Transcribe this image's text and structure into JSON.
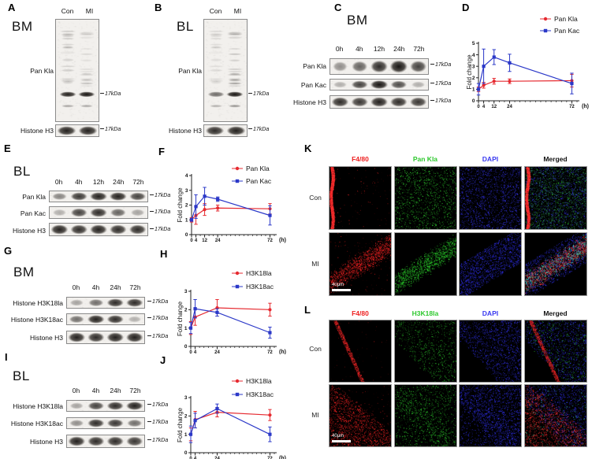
{
  "panels": {
    "A": {
      "letter": "A",
      "tissue": "BM"
    },
    "B": {
      "letter": "B",
      "tissue": "BL"
    },
    "C": {
      "letter": "C",
      "tissue": "BM"
    },
    "D": {
      "letter": "D"
    },
    "E": {
      "letter": "E",
      "tissue": "BL"
    },
    "F": {
      "letter": "F"
    },
    "G": {
      "letter": "G",
      "tissue": "BM"
    },
    "H": {
      "letter": "H"
    },
    "I": {
      "letter": "I",
      "tissue": "BL"
    },
    "J": {
      "letter": "J"
    },
    "K": {
      "letter": "K"
    },
    "L": {
      "letter": "L"
    }
  },
  "tall_blots": {
    "A": {
      "lane_labels": [
        "Con",
        "MI"
      ],
      "target": "Pan Kla",
      "marker": "17kDa",
      "loading": "Histone H3",
      "loading_marker": "17kDa",
      "band_intensities": [
        0.95,
        1.0
      ],
      "smear": [
        0.45,
        0.4
      ],
      "loading_intensities": [
        0.95,
        0.95
      ]
    },
    "B": {
      "lane_labels": [
        "Con",
        "MI"
      ],
      "target": "Pan Kla",
      "marker": "17kDa",
      "loading": "Histone H3",
      "loading_marker": "17kDa",
      "band_intensities": [
        0.6,
        1.0
      ],
      "smear": [
        0.3,
        0.7
      ],
      "loading_intensities": [
        0.9,
        0.95
      ]
    }
  },
  "strip_blots": {
    "C": {
      "timepoints": [
        "0h",
        "4h",
        "12h",
        "24h",
        "72h"
      ],
      "rows": [
        {
          "label": "Pan Kla",
          "marker": "17kDa",
          "intensities": [
            0.45,
            0.65,
            0.9,
            1.0,
            0.8
          ]
        },
        {
          "label": "Pan Kac",
          "marker": "17kDa",
          "intensities": [
            0.3,
            0.8,
            1.0,
            0.75,
            0.3
          ]
        },
        {
          "label": "Histone H3",
          "marker": "17kDa",
          "intensities": [
            0.9,
            0.85,
            0.95,
            0.9,
            0.85
          ]
        }
      ]
    },
    "E": {
      "timepoints": [
        "0h",
        "4h",
        "12h",
        "24h",
        "72h"
      ],
      "rows": [
        {
          "label": "Pan Kla",
          "marker": "17kDa",
          "intensities": [
            0.5,
            0.85,
            0.95,
            0.95,
            0.8
          ]
        },
        {
          "label": "Pan Kac",
          "marker": "17kDa",
          "intensities": [
            0.3,
            0.8,
            0.9,
            0.65,
            0.35
          ]
        },
        {
          "label": "Histone H3",
          "marker": "17kDa",
          "intensities": [
            0.95,
            0.9,
            0.95,
            0.9,
            0.9
          ]
        }
      ]
    },
    "G": {
      "timepoints": [
        "0h",
        "4h",
        "24h",
        "72h"
      ],
      "rows": [
        {
          "label": "Histone H3K18la",
          "marker": "17kDa",
          "intensities": [
            0.35,
            0.6,
            0.9,
            0.9
          ]
        },
        {
          "label": "Histone H3K18ac",
          "marker": "17kDa",
          "intensities": [
            0.6,
            0.95,
            0.9,
            0.3
          ]
        },
        {
          "label": "Histone H3",
          "marker": "17kDa",
          "intensities": [
            0.95,
            0.9,
            0.95,
            0.95
          ]
        }
      ]
    },
    "I": {
      "timepoints": [
        "0h",
        "4h",
        "24h",
        "72h"
      ],
      "rows": [
        {
          "label": "Histone H3K18la",
          "marker": "17kDa",
          "intensities": [
            0.35,
            0.8,
            0.9,
            0.95
          ]
        },
        {
          "label": "Histone H3K18ac",
          "marker": "17kDa",
          "intensities": [
            0.45,
            0.9,
            0.85,
            0.6
          ]
        },
        {
          "label": "Histone H3",
          "marker": "17kDa",
          "intensities": [
            0.95,
            0.9,
            0.9,
            0.85
          ]
        }
      ]
    }
  },
  "chart_data": [
    {
      "panel": "D",
      "type": "line",
      "x": [
        0,
        4,
        12,
        24,
        72
      ],
      "xlabel": "(h)",
      "ylabel": "Fold change",
      "ylim": [
        0,
        5
      ],
      "yticks": [
        0,
        1,
        2,
        3,
        4,
        5
      ],
      "minor_tick_step": 4,
      "legend_position": "top-right",
      "series": [
        {
          "name": "Pan Kla",
          "color": "#e62a30",
          "marker": "circle",
          "values": [
            1.0,
            1.35,
            1.7,
            1.7,
            1.75
          ],
          "errors": [
            0.2,
            0.25,
            0.25,
            0.2,
            0.55
          ]
        },
        {
          "name": "Pan Kac",
          "color": "#2b38c8",
          "marker": "square",
          "values": [
            1.0,
            3.0,
            3.8,
            3.3,
            1.5
          ],
          "errors": [
            0.5,
            1.5,
            0.65,
            0.75,
            0.9
          ]
        }
      ]
    },
    {
      "panel": "F",
      "type": "line",
      "x": [
        0,
        4,
        12,
        24,
        72
      ],
      "xlabel": "(h)",
      "ylabel": "Fold change",
      "ylim": [
        0,
        4
      ],
      "yticks": [
        0,
        1,
        2,
        3,
        4
      ],
      "minor_tick_step": 4,
      "legend_position": "top-right",
      "series": [
        {
          "name": "Pan Kla",
          "color": "#e62a30",
          "marker": "circle",
          "values": [
            1.0,
            1.3,
            1.7,
            1.8,
            1.75
          ],
          "errors": [
            0.15,
            0.6,
            0.4,
            0.2,
            0.35
          ]
        },
        {
          "name": "Pan Kac",
          "color": "#2b38c8",
          "marker": "square",
          "values": [
            1.0,
            1.9,
            2.6,
            2.4,
            1.3
          ],
          "errors": [
            0.1,
            0.8,
            0.6,
            0.15,
            0.65
          ]
        }
      ]
    },
    {
      "panel": "H",
      "type": "line",
      "x": [
        0,
        4,
        24,
        72
      ],
      "xlabel": "(h)",
      "ylabel": "Fold change",
      "ylim": [
        0,
        3
      ],
      "yticks": [
        0,
        1,
        2,
        3
      ],
      "minor_tick_step": 4,
      "legend_position": "top-right",
      "series": [
        {
          "name": "H3K18la",
          "color": "#e62a30",
          "marker": "circle",
          "values": [
            1.0,
            1.6,
            2.1,
            2.0
          ],
          "errors": [
            0.35,
            0.45,
            0.45,
            0.35
          ]
        },
        {
          "name": "H3K18ac",
          "color": "#2b38c8",
          "marker": "square",
          "values": [
            1.0,
            2.05,
            1.85,
            0.75
          ],
          "errors": [
            0.3,
            0.5,
            0.2,
            0.3
          ]
        }
      ]
    },
    {
      "panel": "J",
      "type": "line",
      "x": [
        0,
        4,
        24,
        72
      ],
      "xlabel": "(h)",
      "ylabel": "Fold change",
      "ylim": [
        0,
        3
      ],
      "yticks": [
        0,
        1,
        2,
        3
      ],
      "minor_tick_step": 4,
      "legend_position": "top-right",
      "series": [
        {
          "name": "H3K18la",
          "color": "#e62a30",
          "marker": "circle",
          "values": [
            1.0,
            1.8,
            2.2,
            2.05
          ],
          "errors": [
            0.35,
            0.45,
            0.25,
            0.3
          ]
        },
        {
          "name": "H3K18ac",
          "color": "#2b38c8",
          "marker": "square",
          "values": [
            1.0,
            1.75,
            2.4,
            1.0
          ],
          "errors": [
            0.45,
            0.4,
            0.25,
            0.4
          ]
        }
      ]
    }
  ],
  "if_panels": {
    "K": {
      "col_headers": [
        {
          "label": "F4/80",
          "color": "#ee2222"
        },
        {
          "label": "Pan Kla",
          "color": "#2ec82e"
        },
        {
          "label": "DAPI",
          "color": "#3a3af0"
        },
        {
          "label": "Merged",
          "color": "#111111"
        }
      ],
      "row_labels": [
        "Con",
        "MI"
      ],
      "scale_bar": "40μm"
    },
    "L": {
      "col_headers": [
        {
          "label": "F4/80",
          "color": "#ee2222"
        },
        {
          "label": "H3K18la",
          "color": "#2ec82e"
        },
        {
          "label": "DAPI",
          "color": "#3a3af0"
        },
        {
          "label": "Merged",
          "color": "#111111"
        }
      ],
      "row_labels": [
        "Con",
        "MI"
      ],
      "scale_bar": "40μm"
    }
  },
  "microscopy": {
    "K": {
      "rows": [
        {
          "cells": [
            {
              "layers": [
                {
                  "mask": "leftEdge",
                  "color": "#ff3030",
                  "density": 0.7
                },
                {
                  "mask": "full",
                  "color": "#b01818",
                  "density": 0.04
                }
              ]
            },
            {
              "layers": [
                {
                  "mask": "full",
                  "color": "#30d030",
                  "density": 0.5
                }
              ]
            },
            {
              "layers": [
                {
                  "mask": "full",
                  "color": "#3434ea",
                  "density": 0.7
                }
              ]
            },
            {
              "layers": [
                {
                  "mask": "full",
                  "color": "#2a6a66",
                  "density": 0.6
                },
                {
                  "mask": "full",
                  "color": "#30d030",
                  "density": 0.25
                },
                {
                  "mask": "full",
                  "color": "#3434ea",
                  "density": 0.3
                },
                {
                  "mask": "leftEdge",
                  "color": "#ff3030",
                  "density": 0.7
                }
              ]
            }
          ]
        },
        {
          "cells": [
            {
              "layers": [
                {
                  "mask": "band",
                  "color": "#ff2424",
                  "density": 0.55
                },
                {
                  "mask": "full",
                  "color": "#a81414",
                  "density": 0.05
                }
              ]
            },
            {
              "layers": [
                {
                  "mask": "band",
                  "color": "#2cd22c",
                  "density": 0.55
                }
              ]
            },
            {
              "layers": [
                {
                  "mask": "bandWide",
                  "color": "#3030ea",
                  "density": 0.7
                }
              ]
            },
            {
              "layers": [
                {
                  "mask": "bandWide",
                  "color": "#3030ea",
                  "density": 0.55
                },
                {
                  "mask": "band",
                  "color": "#ff3a3a",
                  "density": 0.5
                },
                {
                  "mask": "band",
                  "color": "#34e0c0",
                  "density": 0.25
                }
              ]
            }
          ]
        }
      ]
    },
    "L": {
      "rows": [
        {
          "cells": [
            {
              "layers": [
                {
                  "mask": "edgeDiag",
                  "color": "#e02424",
                  "density": 0.3
                },
                {
                  "mask": "full",
                  "color": "#7a1010",
                  "density": 0.02
                }
              ]
            },
            {
              "layers": [
                {
                  "mask": "upperRight",
                  "color": "#28b428",
                  "density": 0.32
                }
              ]
            },
            {
              "layers": [
                {
                  "mask": "upperRight",
                  "color": "#3030e4",
                  "density": 0.6
                }
              ]
            },
            {
              "layers": [
                {
                  "mask": "upperRight",
                  "color": "#3030e4",
                  "density": 0.5
                },
                {
                  "mask": "upperRight",
                  "color": "#28b428",
                  "density": 0.15
                },
                {
                  "mask": "edgeDiag",
                  "color": "#e02424",
                  "density": 0.3
                }
              ]
            }
          ]
        },
        {
          "cells": [
            {
              "layers": [
                {
                  "mask": "lowerLeft",
                  "color": "#ff2424",
                  "density": 0.6
                },
                {
                  "mask": "upperRight",
                  "color": "#901212",
                  "density": 0.05
                }
              ]
            },
            {
              "layers": [
                {
                  "mask": "upperRight",
                  "color": "#2cc82c",
                  "density": 0.32
                },
                {
                  "mask": "lowerLeft",
                  "color": "#2cc82c",
                  "density": 0.2
                }
              ]
            },
            {
              "layers": [
                {
                  "mask": "upperRight",
                  "color": "#3030ea",
                  "density": 0.6
                },
                {
                  "mask": "lowerLeft",
                  "color": "#3030ea",
                  "density": 0.25
                }
              ]
            },
            {
              "layers": [
                {
                  "mask": "upperRight",
                  "color": "#3030ea",
                  "density": 0.5
                },
                {
                  "mask": "lowerLeft",
                  "color": "#ff3030",
                  "density": 0.55
                },
                {
                  "mask": "full",
                  "color": "#30c090",
                  "density": 0.08
                }
              ]
            }
          ]
        }
      ]
    }
  }
}
